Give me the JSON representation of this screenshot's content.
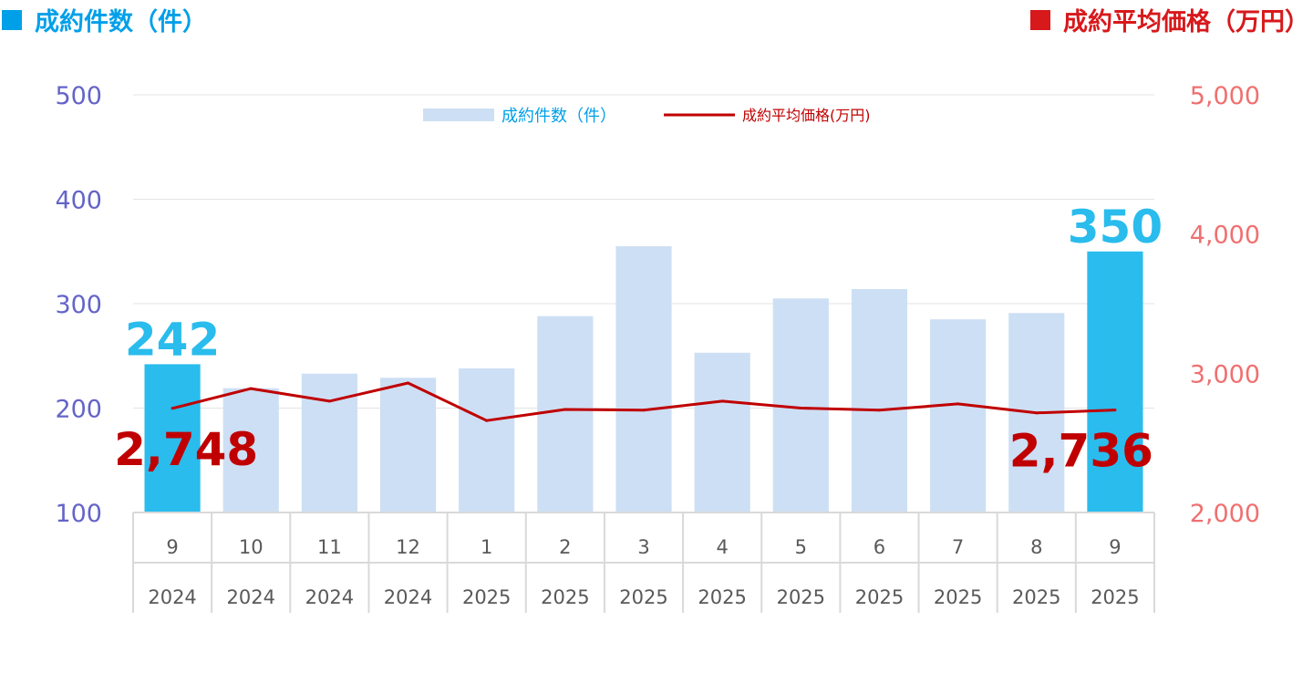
{
  "header": {
    "left_label": "成約件数（件）",
    "right_label": "成約平均価格（万円）",
    "left_color": "#00a0e9",
    "right_color": "#d7191c"
  },
  "chart_data": {
    "type": "bar+line",
    "categories": [
      {
        "month": "9",
        "year": "2024"
      },
      {
        "month": "10",
        "year": "2024"
      },
      {
        "month": "11",
        "year": "2024"
      },
      {
        "month": "12",
        "year": "2024"
      },
      {
        "month": "1",
        "year": "2025"
      },
      {
        "month": "2",
        "year": "2025"
      },
      {
        "month": "3",
        "year": "2025"
      },
      {
        "month": "4",
        "year": "2025"
      },
      {
        "month": "5",
        "year": "2025"
      },
      {
        "month": "6",
        "year": "2025"
      },
      {
        "month": "7",
        "year": "2025"
      },
      {
        "month": "8",
        "year": "2025"
      },
      {
        "month": "9",
        "year": "2025"
      }
    ],
    "series": [
      {
        "name": "成約件数（件）",
        "type": "bar",
        "axis": "left",
        "values": [
          242,
          219,
          233,
          229,
          238,
          288,
          355,
          253,
          305,
          314,
          285,
          291,
          350
        ],
        "color": "#cddff4",
        "highlight_color": "#29bced",
        "highlight_indices": [
          0,
          12
        ]
      },
      {
        "name": "成約平均価格(万円)",
        "type": "line",
        "axis": "right",
        "values": [
          2748,
          2890,
          2800,
          2930,
          2660,
          2740,
          2735,
          2800,
          2750,
          2735,
          2780,
          2715,
          2736
        ],
        "color": "#c00000"
      }
    ],
    "left_axis": {
      "min": 100,
      "max": 500,
      "ticks": [
        "500",
        "400",
        "300",
        "200",
        "100"
      ],
      "color": "#6464c8"
    },
    "right_axis": {
      "min": 2000,
      "max": 5000,
      "ticks": [
        "5,000",
        "4,000",
        "3,000",
        "2,000"
      ],
      "color": "#f07070"
    },
    "bar_value_labels": [
      {
        "index": 0,
        "text": "242"
      },
      {
        "index": 12,
        "text": "350"
      }
    ],
    "line_value_labels": [
      {
        "index": 0,
        "text": "2,748"
      },
      {
        "index": 12,
        "text": "2,736"
      }
    ],
    "legend_position": "top",
    "gridlines": true
  }
}
